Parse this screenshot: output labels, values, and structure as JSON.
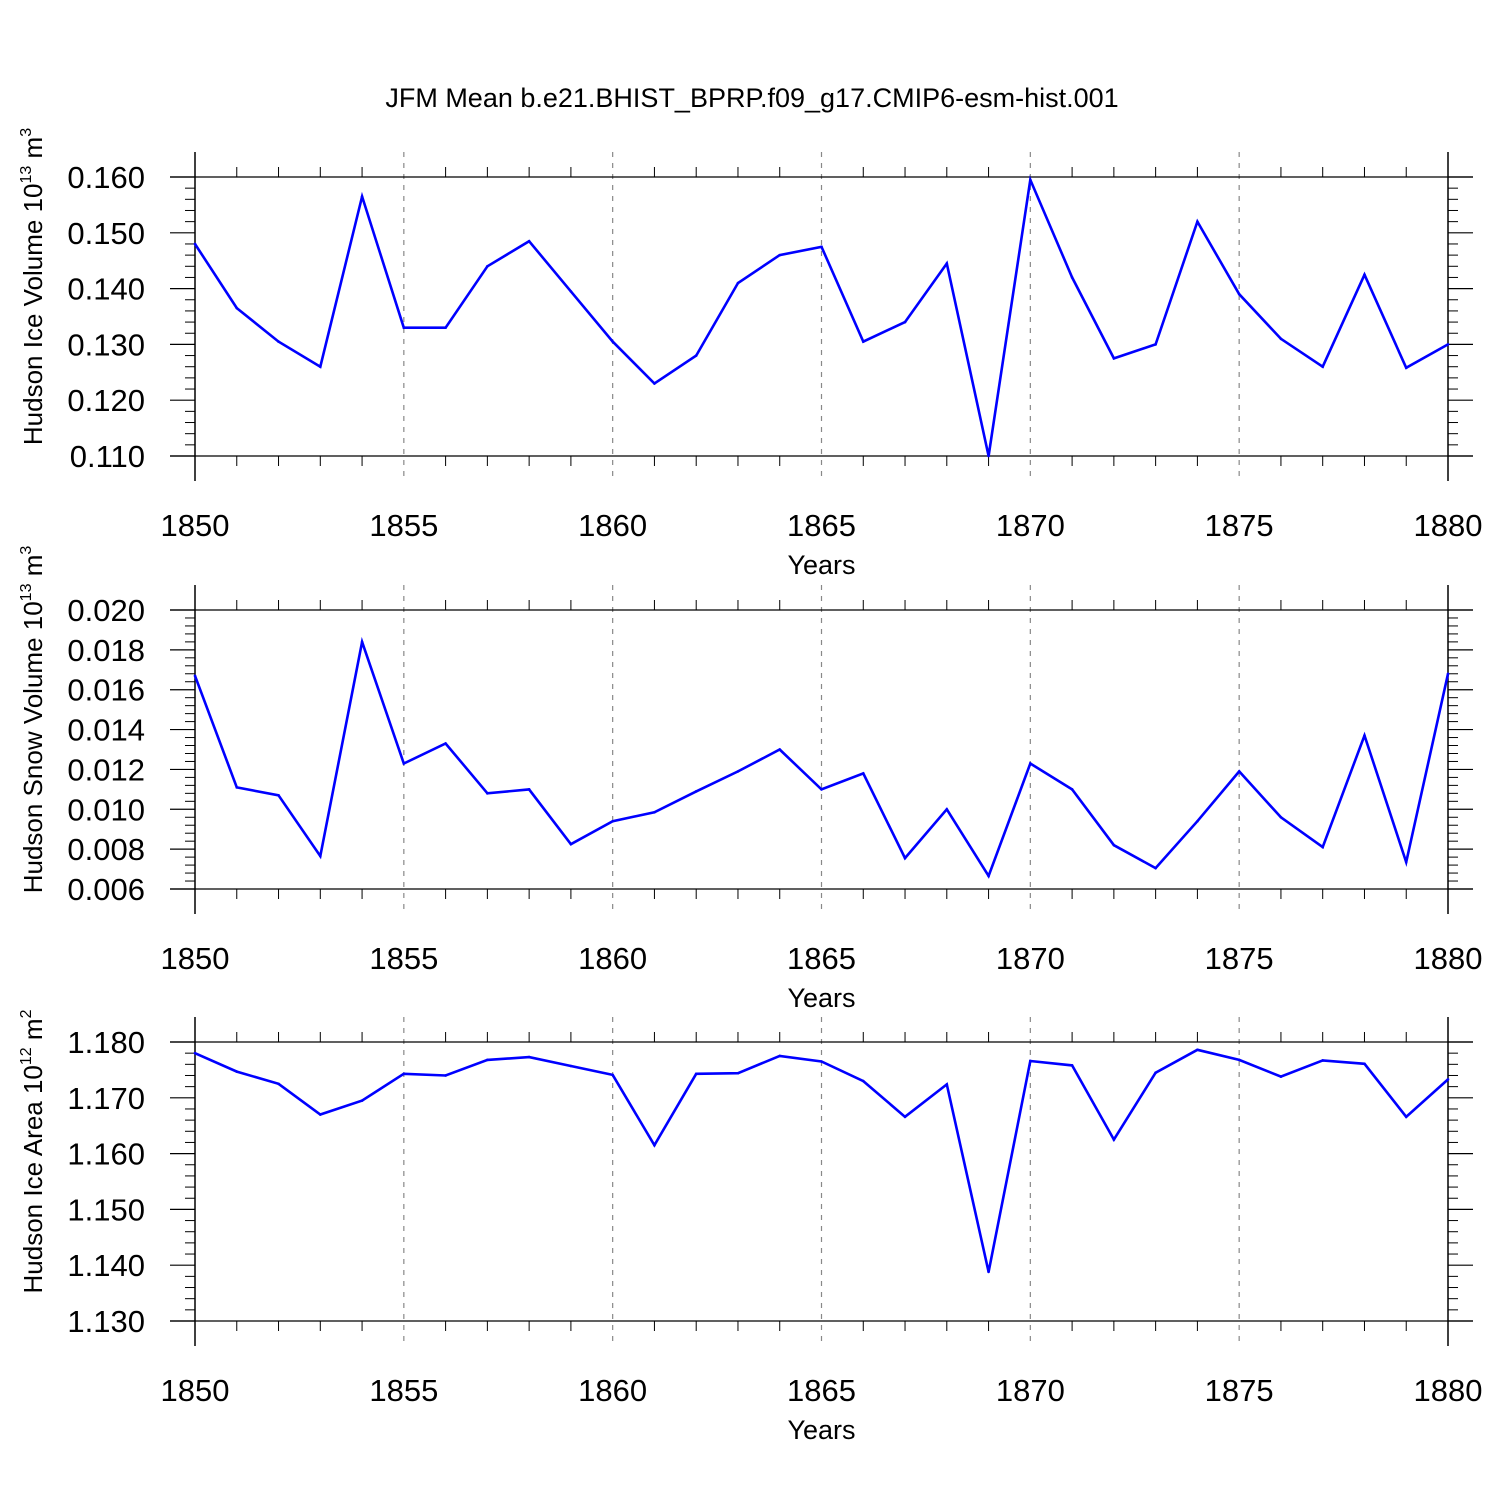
{
  "title": "JFM Mean b.e21.BHIST_BPRP.f09_g17.CMIP6-esm-hist.001",
  "colors": {
    "series": "#0000ff",
    "axis": "#000000",
    "grid": "#888888"
  },
  "chart_data": [
    {
      "type": "line",
      "ylabel": "Hudson Ice Volume",
      "yunit_base": "10",
      "yunit_exp": "13",
      "yunit_sym": "m",
      "yunit_pow": "3",
      "xlabel": "Years",
      "xlim": [
        1850,
        1880
      ],
      "ylim": [
        0.11,
        0.16
      ],
      "xticks": [
        "1850",
        "1855",
        "1860",
        "1865",
        "1870",
        "1875",
        "1880"
      ],
      "yticks": [
        "0.110",
        "0.120",
        "0.130",
        "0.140",
        "0.150",
        "0.160"
      ],
      "grid": "vertical dashed at major x ticks",
      "x": [
        1850,
        1851,
        1852,
        1853,
        1854,
        1855,
        1856,
        1857,
        1858,
        1859,
        1860,
        1861,
        1862,
        1863,
        1864,
        1865,
        1866,
        1867,
        1868,
        1869,
        1870,
        1871,
        1872,
        1873,
        1874,
        1875,
        1876,
        1877,
        1878,
        1879,
        1880
      ],
      "y": [
        0.148,
        0.1365,
        0.1305,
        0.126,
        0.1565,
        0.133,
        0.133,
        0.144,
        0.1485,
        0.1395,
        0.1305,
        0.123,
        0.128,
        0.141,
        0.146,
        0.1475,
        0.1305,
        0.134,
        0.1445,
        0.11,
        0.1595,
        0.142,
        0.1275,
        0.13,
        0.152,
        0.139,
        0.131,
        0.126,
        0.1425,
        0.1258,
        0.13
      ]
    },
    {
      "type": "line",
      "ylabel": "Hudson Snow Volume",
      "yunit_base": "10",
      "yunit_exp": "13",
      "yunit_sym": "m",
      "yunit_pow": "3",
      "xlabel": "Years",
      "xlim": [
        1850,
        1880
      ],
      "ylim": [
        0.006,
        0.02
      ],
      "xticks": [
        "1850",
        "1855",
        "1860",
        "1865",
        "1870",
        "1875",
        "1880"
      ],
      "yticks": [
        "0.006",
        "0.008",
        "0.010",
        "0.012",
        "0.014",
        "0.016",
        "0.018",
        "0.020"
      ],
      "grid": "vertical dashed at major x ticks",
      "x": [
        1850,
        1851,
        1852,
        1853,
        1854,
        1855,
        1856,
        1857,
        1858,
        1859,
        1860,
        1861,
        1862,
        1863,
        1864,
        1865,
        1866,
        1867,
        1868,
        1869,
        1870,
        1871,
        1872,
        1873,
        1874,
        1875,
        1876,
        1877,
        1878,
        1879,
        1880
      ],
      "y": [
        0.0167,
        0.0111,
        0.0107,
        0.00765,
        0.0184,
        0.0123,
        0.0133,
        0.0108,
        0.011,
        0.00825,
        0.0094,
        0.00985,
        0.0109,
        0.0119,
        0.013,
        0.011,
        0.0118,
        0.00755,
        0.01,
        0.00665,
        0.0123,
        0.011,
        0.0082,
        0.00705,
        0.0094,
        0.0119,
        0.0096,
        0.0081,
        0.0137,
        0.00735,
        0.0168
      ]
    },
    {
      "type": "line",
      "ylabel": "Hudson Ice Area",
      "yunit_base": "10",
      "yunit_exp": "12",
      "yunit_sym": "m",
      "yunit_pow": "2",
      "xlabel": "Years",
      "xlim": [
        1850,
        1880
      ],
      "ylim": [
        1.13,
        1.18
      ],
      "xticks": [
        "1850",
        "1855",
        "1860",
        "1865",
        "1870",
        "1875",
        "1880"
      ],
      "yticks": [
        "1.130",
        "1.140",
        "1.150",
        "1.160",
        "1.170",
        "1.180"
      ],
      "grid": "vertical dashed at major x ticks",
      "x": [
        1850,
        1851,
        1852,
        1853,
        1854,
        1855,
        1856,
        1857,
        1858,
        1859,
        1860,
        1861,
        1862,
        1863,
        1864,
        1865,
        1866,
        1867,
        1868,
        1869,
        1870,
        1871,
        1872,
        1873,
        1874,
        1875,
        1876,
        1877,
        1878,
        1879,
        1880
      ],
      "y": [
        1.178,
        1.1747,
        1.1725,
        1.167,
        1.1695,
        1.1743,
        1.174,
        1.1768,
        1.1773,
        1.1757,
        1.1741,
        1.1615,
        1.1743,
        1.1744,
        1.1775,
        1.1765,
        1.173,
        1.1666,
        1.1724,
        1.1388,
        1.1766,
        1.1758,
        1.1625,
        1.1745,
        1.1786,
        1.1768,
        1.1738,
        1.1767,
        1.1761,
        1.1666,
        1.1733
      ]
    }
  ]
}
